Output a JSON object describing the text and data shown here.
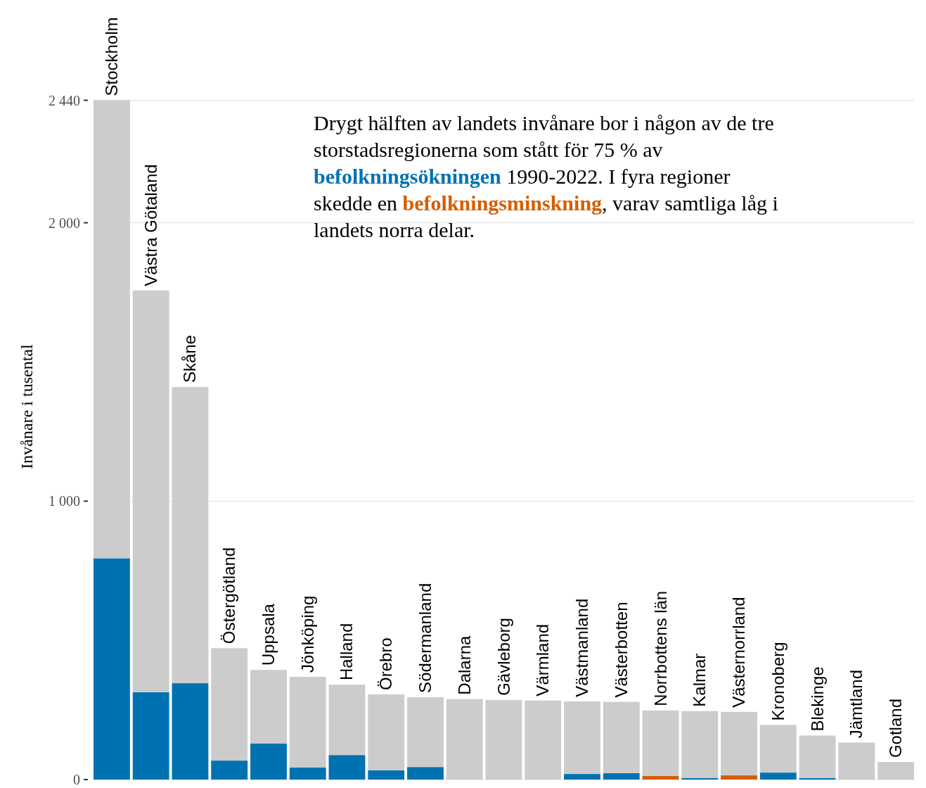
{
  "chart_data": {
    "type": "bar",
    "ylabel": "Invånare i tusental",
    "categories": [
      "Stockholm",
      "Västra Götaland",
      "Skåne",
      "Östergötland",
      "Uppsala",
      "Jönköping",
      "Halland",
      "Örebro",
      "Södermanland",
      "Dalarna",
      "Gävleborg",
      "Värmland",
      "Västmanland",
      "Västerbotten",
      "Norrbottens län",
      "Kalmar",
      "Västernorrland",
      "Kronoberg",
      "Blekinge",
      "Jämtland",
      "Gotland"
    ],
    "series": [
      {
        "name": "befolkningsökningen",
        "color": "#0072b2",
        "values": [
          795,
          314,
          346,
          68,
          130,
          43,
          88,
          33,
          45,
          null,
          null,
          null,
          20,
          23,
          null,
          5,
          null,
          25,
          5,
          null,
          null
        ]
      },
      {
        "name": "befolkningsminskning",
        "color": "#d55e00",
        "values": [
          null,
          null,
          null,
          null,
          null,
          null,
          null,
          null,
          null,
          null,
          null,
          null,
          null,
          null,
          13,
          null,
          15,
          null,
          null,
          null,
          null
        ]
      },
      {
        "color": "#cccccc",
        "values": [
          1645,
          1443,
          1064,
          404,
          264,
          326,
          253,
          273,
          251,
          289,
          286,
          284,
          261,
          256,
          235,
          241,
          228,
          171,
          153,
          133,
          63
        ]
      }
    ],
    "stacked": true,
    "ylim": [
      0,
      2780
    ],
    "yticks": [
      {
        "value": 0,
        "label": "0"
      },
      {
        "value": 1000,
        "label": "1 000"
      },
      {
        "value": 2000,
        "label": "2 000"
      },
      {
        "value": 2440,
        "label": "2 440"
      }
    ],
    "grid": "y",
    "annotations": [
      "Drygt hälften av landets invånare bor i någon av de tre storstadsregionerna som stått för 75 % av",
      "1990-2022. I fyra regioner skedde en",
      ", varav samtliga låg i landets norra delar."
    ]
  }
}
